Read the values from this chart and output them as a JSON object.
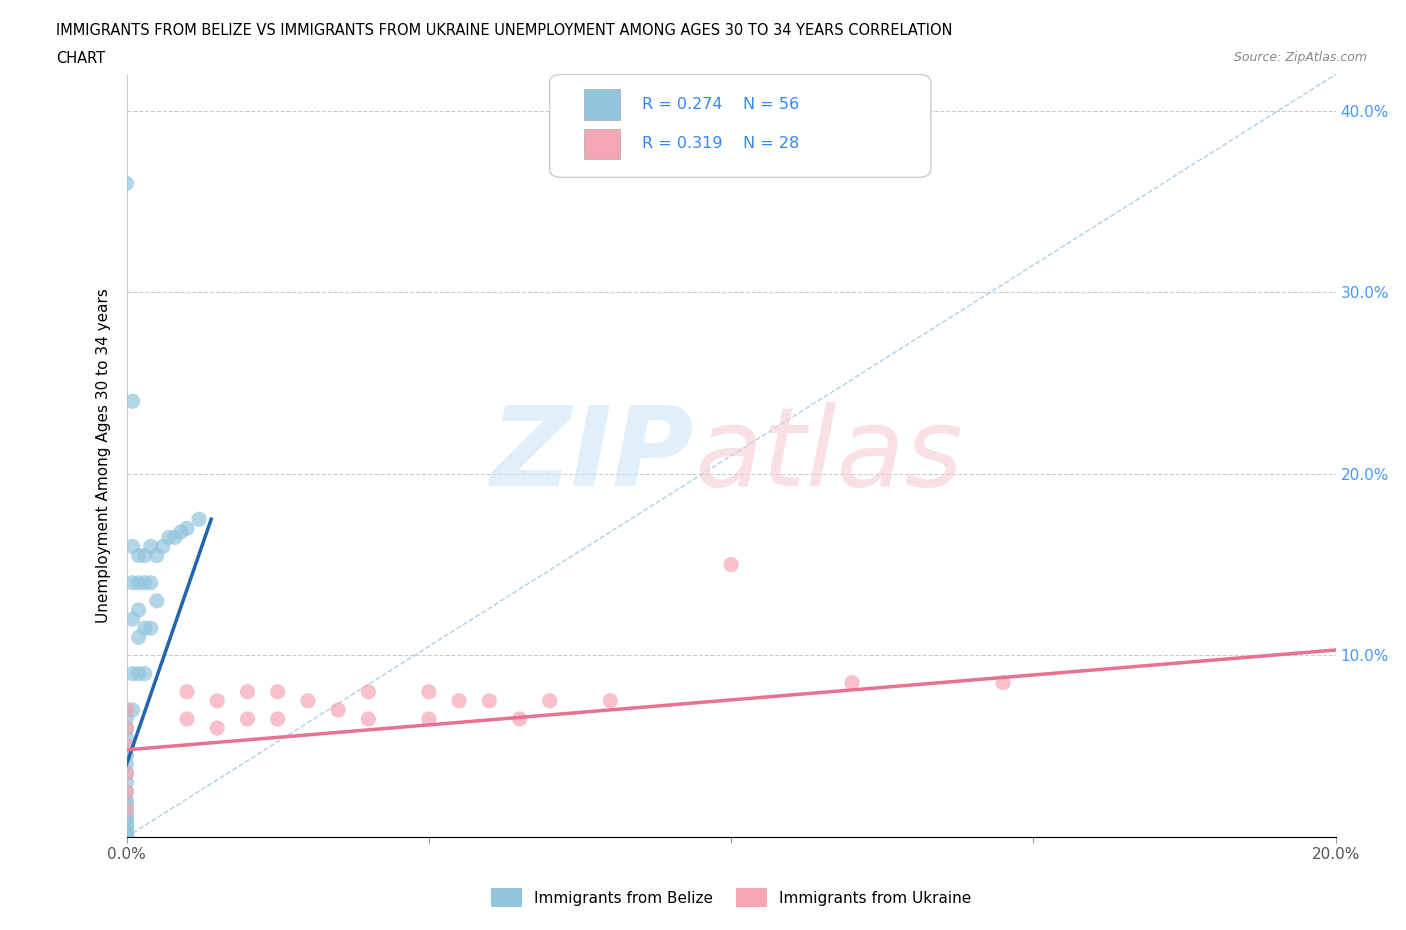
{
  "title_line1": "IMMIGRANTS FROM BELIZE VS IMMIGRANTS FROM UKRAINE UNEMPLOYMENT AMONG AGES 30 TO 34 YEARS CORRELATION",
  "title_line2": "CHART",
  "source_text": "Source: ZipAtlas.com",
  "ylabel": "Unemployment Among Ages 30 to 34 years",
  "xlim": [
    0.0,
    0.2
  ],
  "ylim": [
    0.0,
    0.42
  ],
  "belize_R": 0.274,
  "belize_N": 56,
  "ukraine_R": 0.319,
  "ukraine_N": 28,
  "belize_color": "#92c5de",
  "ukraine_color": "#f4a6b4",
  "belize_line_color": "#2166ac",
  "ukraine_line_color": "#e87090",
  "diagonal_color": "#7ab0d8",
  "belize_x": [
    0.0,
    0.0,
    0.0,
    0.0,
    0.0,
    0.0,
    0.0,
    0.0,
    0.0,
    0.0,
    0.0,
    0.0,
    0.0,
    0.0,
    0.0,
    0.0,
    0.0,
    0.0,
    0.0,
    0.0,
    0.0,
    0.0,
    0.0,
    0.0,
    0.0,
    0.0,
    0.0,
    0.0,
    0.0,
    0.0,
    0.001,
    0.001,
    0.001,
    0.001,
    0.001,
    0.001,
    0.002,
    0.002,
    0.002,
    0.002,
    0.002,
    0.003,
    0.003,
    0.003,
    0.003,
    0.004,
    0.004,
    0.004,
    0.005,
    0.005,
    0.006,
    0.007,
    0.008,
    0.009,
    0.01,
    0.012
  ],
  "belize_y": [
    0.36,
    0.07,
    0.065,
    0.06,
    0.055,
    0.05,
    0.045,
    0.04,
    0.035,
    0.03,
    0.025,
    0.02,
    0.018,
    0.015,
    0.012,
    0.01,
    0.008,
    0.006,
    0.004,
    0.002,
    0.001,
    0.0,
    0.0,
    0.0,
    0.0,
    0.0,
    0.0,
    0.0,
    0.0,
    0.0,
    0.24,
    0.16,
    0.14,
    0.12,
    0.09,
    0.07,
    0.155,
    0.14,
    0.125,
    0.11,
    0.09,
    0.155,
    0.14,
    0.115,
    0.09,
    0.16,
    0.14,
    0.115,
    0.155,
    0.13,
    0.16,
    0.165,
    0.165,
    0.168,
    0.17,
    0.175
  ],
  "ukraine_x": [
    0.0,
    0.0,
    0.0,
    0.0,
    0.0,
    0.0,
    0.01,
    0.01,
    0.015,
    0.015,
    0.02,
    0.02,
    0.025,
    0.025,
    0.03,
    0.035,
    0.04,
    0.04,
    0.05,
    0.05,
    0.055,
    0.06,
    0.065,
    0.07,
    0.08,
    0.1,
    0.12,
    0.145
  ],
  "ukraine_y": [
    0.07,
    0.06,
    0.05,
    0.035,
    0.025,
    0.015,
    0.08,
    0.065,
    0.075,
    0.06,
    0.08,
    0.065,
    0.08,
    0.065,
    0.075,
    0.07,
    0.08,
    0.065,
    0.08,
    0.065,
    0.075,
    0.075,
    0.065,
    0.075,
    0.075,
    0.15,
    0.085,
    0.085
  ],
  "belize_line_x": [
    0.0,
    0.014
  ],
  "belize_line_y": [
    0.04,
    0.175
  ],
  "ukraine_line_x": [
    0.0,
    0.2
  ],
  "ukraine_line_y": [
    0.048,
    0.103
  ]
}
